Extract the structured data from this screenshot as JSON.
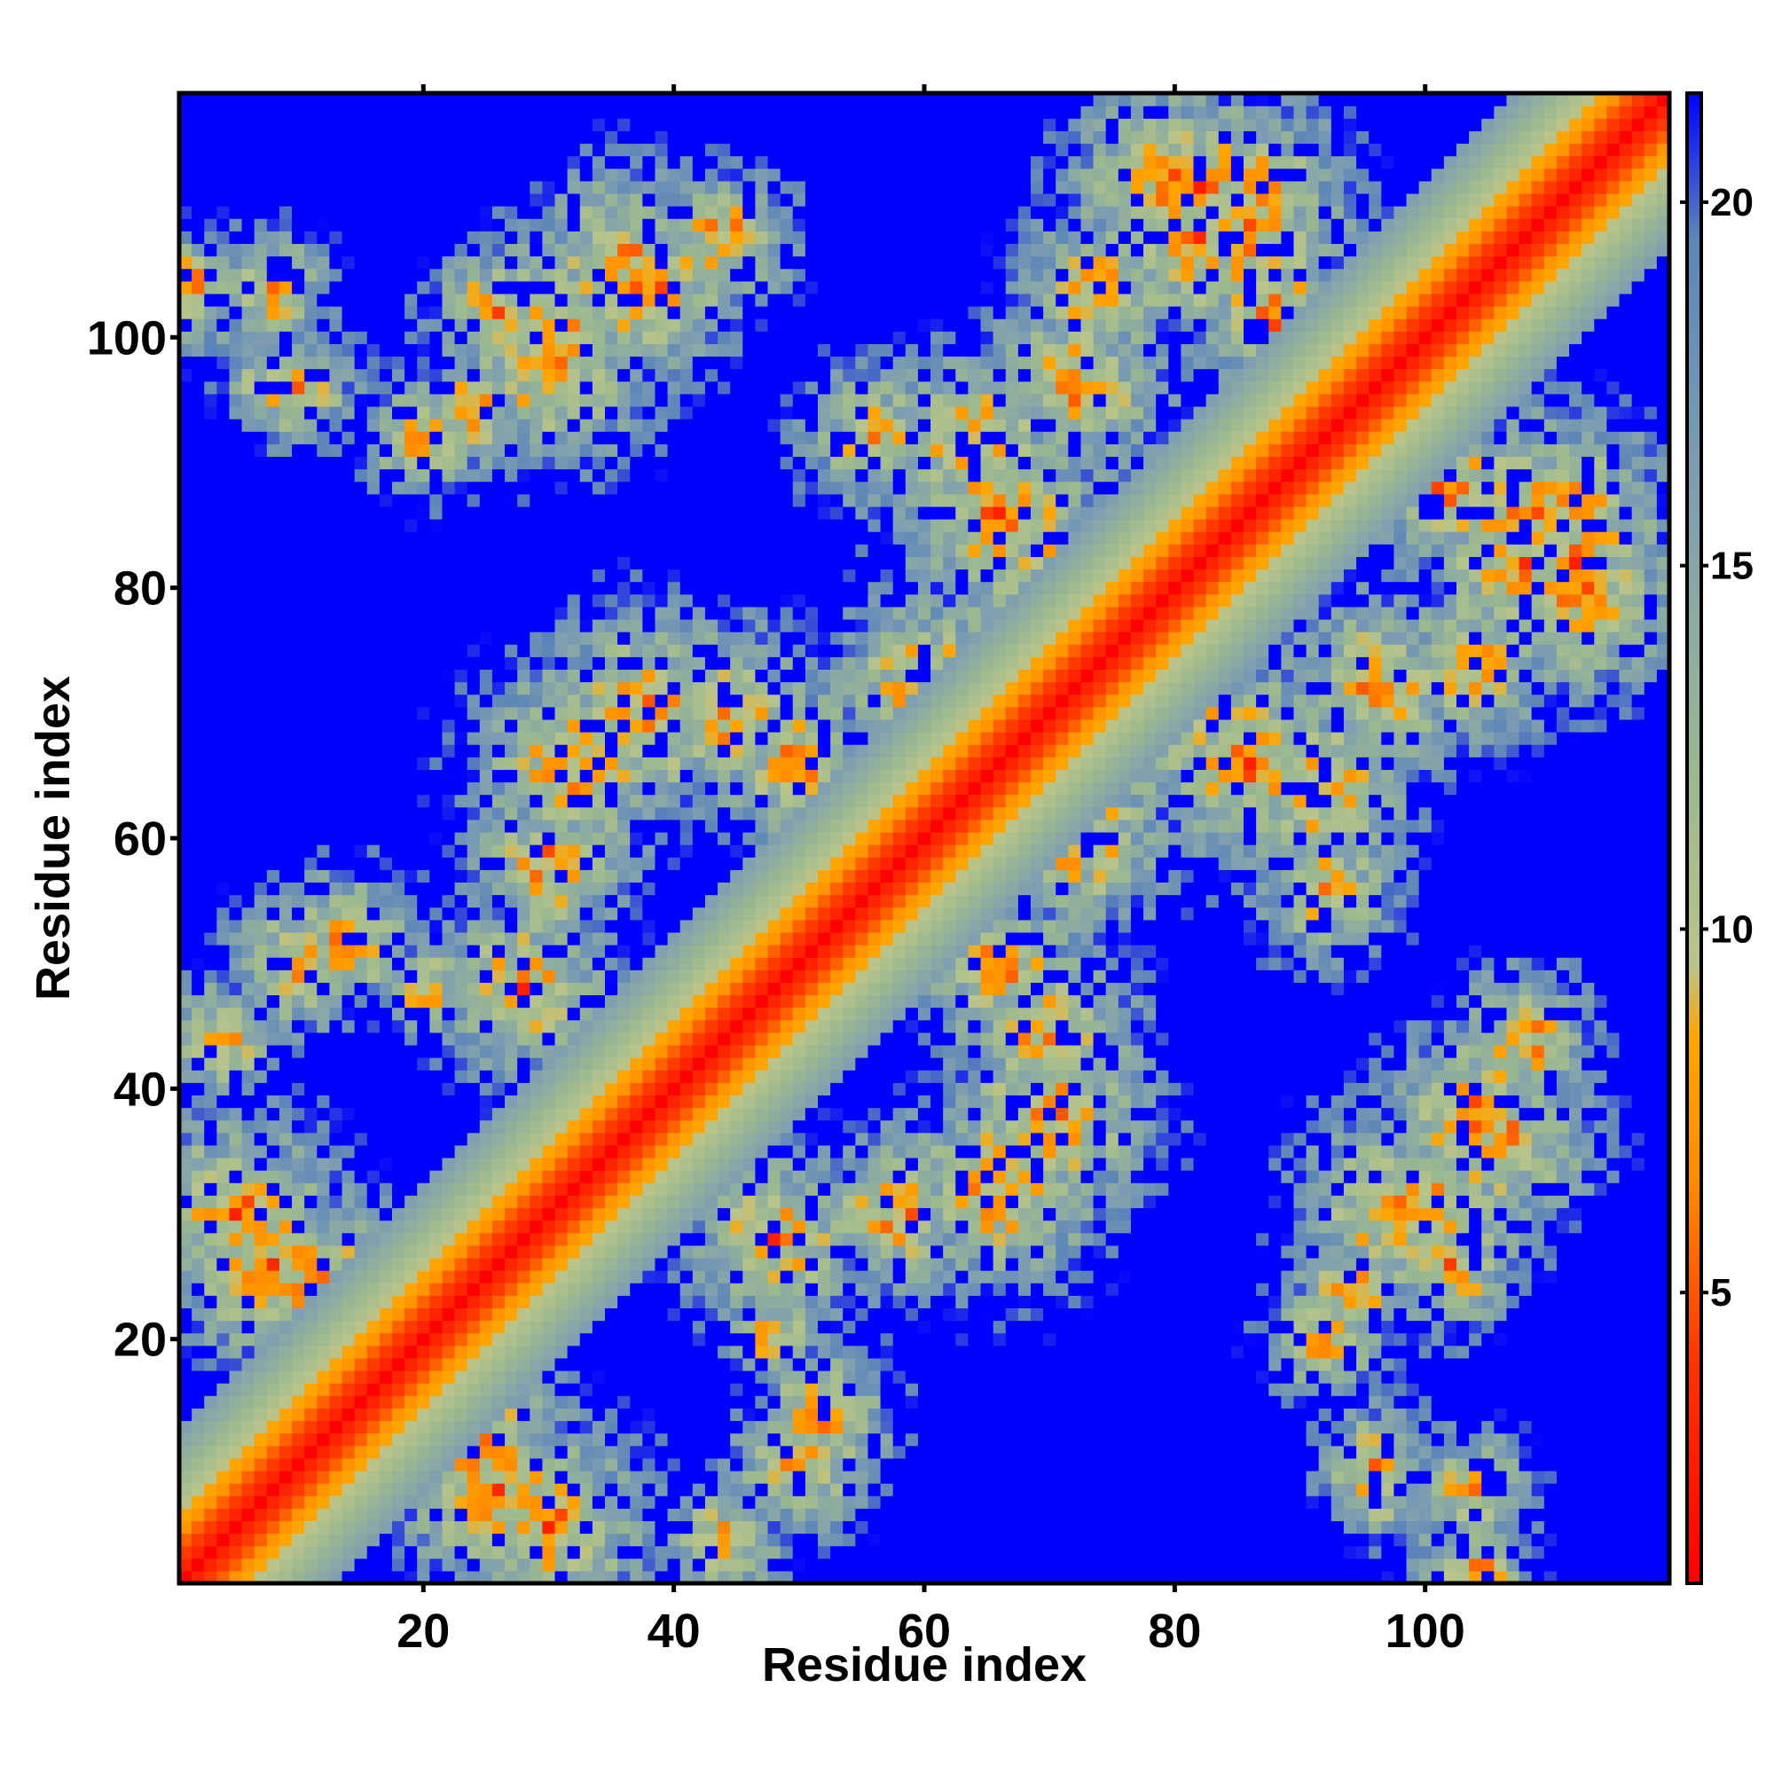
{
  "chart_data": {
    "type": "heatmap",
    "title": "",
    "xlabel": "Residue index",
    "ylabel": "Residue index",
    "xlim": [
      1,
      119
    ],
    "ylim": [
      1,
      119
    ],
    "x_ticks": [
      20,
      40,
      60,
      80,
      100
    ],
    "y_ticks": [
      20,
      40,
      60,
      80,
      100
    ],
    "n_residues": 119,
    "colorbar": {
      "range": [
        1,
        21.5
      ],
      "ticks": [
        5,
        10,
        15,
        20
      ],
      "stops": [
        {
          "value": 1,
          "color": "#ff0000"
        },
        {
          "value": 4,
          "color": "#ff3300"
        },
        {
          "value": 6.5,
          "color": "#ff8c00"
        },
        {
          "value": 8.5,
          "color": "#ffa500"
        },
        {
          "value": 9.5,
          "color": "#b9c48a"
        },
        {
          "value": 12,
          "color": "#9cb98f"
        },
        {
          "value": 16,
          "color": "#7f9fb0"
        },
        {
          "value": 19.5,
          "color": "#5d86b8"
        },
        {
          "value": 21.5,
          "color": "#0000ff"
        }
      ],
      "out_of_range_color": "#0000ff"
    },
    "contact_clusters": [
      {
        "i": 5,
        "j": 30,
        "strength": 0.9
      },
      {
        "i": 8,
        "j": 26,
        "strength": 0.9
      },
      {
        "i": 12,
        "j": 24,
        "strength": 0.8
      },
      {
        "i": 4,
        "j": 44,
        "strength": 0.5
      },
      {
        "i": 10,
        "j": 50,
        "strength": 0.6
      },
      {
        "i": 14,
        "j": 52,
        "strength": 0.6
      },
      {
        "i": 28,
        "j": 48,
        "strength": 0.8
      },
      {
        "i": 30,
        "j": 58,
        "strength": 0.7
      },
      {
        "i": 32,
        "j": 66,
        "strength": 0.9
      },
      {
        "i": 38,
        "j": 70,
        "strength": 0.9
      },
      {
        "i": 44,
        "j": 70,
        "strength": 0.8
      },
      {
        "i": 30,
        "j": 100,
        "strength": 0.9
      },
      {
        "i": 36,
        "j": 106,
        "strength": 0.8
      },
      {
        "i": 44,
        "j": 108,
        "strength": 0.6
      },
      {
        "i": 24,
        "j": 94,
        "strength": 0.5
      },
      {
        "i": 66,
        "j": 86,
        "strength": 0.9
      },
      {
        "i": 70,
        "j": 80,
        "strength": 0.9
      },
      {
        "i": 64,
        "j": 92,
        "strength": 0.8
      },
      {
        "i": 72,
        "j": 96,
        "strength": 0.8
      },
      {
        "i": 74,
        "j": 104,
        "strength": 0.7
      },
      {
        "i": 82,
        "j": 108,
        "strength": 0.9
      },
      {
        "i": 86,
        "j": 112,
        "strength": 0.8
      },
      {
        "i": 80,
        "j": 112,
        "strength": 0.9
      },
      {
        "i": 88,
        "j": 102,
        "strength": 0.7
      },
      {
        "i": 100,
        "j": 94,
        "strength": 0.6
      },
      {
        "i": 108,
        "j": 86,
        "strength": 0.9
      },
      {
        "i": 112,
        "j": 82,
        "strength": 0.7
      },
      {
        "i": 56,
        "j": 92,
        "strength": 0.6
      },
      {
        "i": 60,
        "j": 72,
        "strength": 0.8
      },
      {
        "i": 50,
        "j": 66,
        "strength": 0.7
      },
      {
        "i": 98,
        "j": 30,
        "strength": 0.9
      },
      {
        "i": 104,
        "j": 38,
        "strength": 0.8
      },
      {
        "i": 102,
        "j": 26,
        "strength": 0.6
      },
      {
        "i": 92,
        "j": 20,
        "strength": 0.5
      },
      {
        "i": 96,
        "j": 10,
        "strength": 0.5
      },
      {
        "i": 104,
        "j": 8,
        "strength": 0.5
      },
      {
        "i": 2,
        "j": 104,
        "strength": 0.5
      },
      {
        "i": 8,
        "j": 96,
        "strength": 0.4
      },
      {
        "i": 48,
        "j": 20,
        "strength": 0.4
      }
    ]
  }
}
